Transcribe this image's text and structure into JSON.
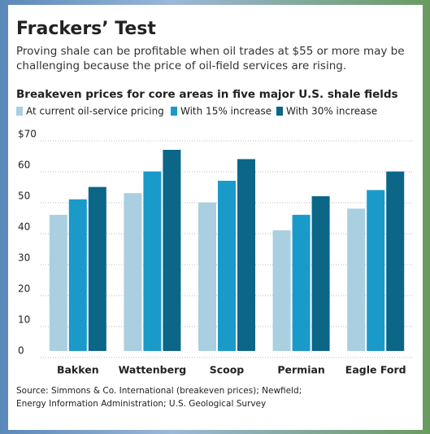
{
  "chart_data": {
    "type": "bar",
    "title": "Frackers’ Test",
    "subtitle": "Proving shale can be profitable when oil trades at $55 or more may be challenging because the price of oil-field services are rising.",
    "chart_title": "Breakeven prices for core areas in five major U.S. shale fields",
    "categories": [
      "Bakken",
      "Wattenberg",
      "Scoop",
      "Permian",
      "Eagle Ford"
    ],
    "series": [
      {
        "name": "At current oil-service pricing",
        "color": "#a9cfe0",
        "values": [
          44,
          51,
          48,
          39,
          46
        ]
      },
      {
        "name": "With 15% increase",
        "color": "#1a9ac9",
        "values": [
          49,
          58,
          55,
          44,
          52
        ]
      },
      {
        "name": "With 30% increase",
        "color": "#0b6688",
        "values": [
          53,
          65,
          62,
          50,
          58
        ]
      }
    ],
    "ylim": [
      0,
      70
    ],
    "yticks": [
      0,
      10,
      20,
      30,
      40,
      50,
      60,
      {
        "value": 70,
        "label": "$70"
      }
    ],
    "grid": true,
    "source": [
      "Source: Simmons & Co. International (breakeven prices); Newfield;",
      "Energy Information Administration; U.S. Geological Survey"
    ]
  }
}
